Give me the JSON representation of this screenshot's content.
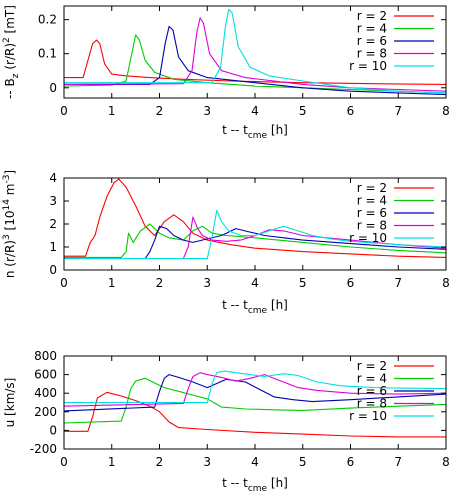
{
  "chart_data": [
    {
      "type": "line",
      "xlabel": "t -- t",
      "xlabel_sub": "cme",
      "xlabel_unit": " [h]",
      "ylabel": "-- B",
      "ylabel_sub": "z",
      "ylabel_rest": " (r/R)",
      "ylabel_sup": "2",
      "ylabel_unit": " [mT]",
      "xlim": [
        0,
        8
      ],
      "ylim": [
        -0.03,
        0.24
      ],
      "xticks": [
        0,
        1,
        2,
        3,
        4,
        5,
        6,
        7,
        8
      ],
      "yticks": [
        0,
        0.1,
        0.2
      ],
      "ytick_labels": [
        "0",
        "0.1",
        "0.2"
      ],
      "legend": "top-right",
      "series": [
        {
          "name": "r = 2",
          "color": "#ff0000",
          "x": [
            0,
            0.4,
            0.5,
            0.6,
            0.68,
            0.75,
            0.85,
            1.0,
            1.3,
            1.8,
            2.5,
            3.5,
            5,
            6.5,
            8
          ],
          "y": [
            0.03,
            0.03,
            0.08,
            0.13,
            0.14,
            0.13,
            0.07,
            0.04,
            0.035,
            0.03,
            0.025,
            0.02,
            0.015,
            0.012,
            0.01
          ]
        },
        {
          "name": "r = 4",
          "color": "#00cc00",
          "x": [
            0,
            1.0,
            1.3,
            1.42,
            1.5,
            1.58,
            1.7,
            1.9,
            2.3,
            3,
            4,
            5,
            6,
            7,
            8
          ],
          "y": [
            0.005,
            0.008,
            0.02,
            0.1,
            0.155,
            0.14,
            0.08,
            0.045,
            0.025,
            0.015,
            0.005,
            0,
            -0.005,
            -0.01,
            -0.015
          ]
        },
        {
          "name": "r = 6",
          "color": "#0000b3",
          "x": [
            0,
            1.8,
            2.0,
            2.12,
            2.2,
            2.28,
            2.4,
            2.6,
            3,
            4,
            5,
            6,
            7,
            8
          ],
          "y": [
            0.01,
            0.01,
            0.03,
            0.13,
            0.18,
            0.17,
            0.09,
            0.05,
            0.03,
            0.015,
            0.0,
            -0.01,
            -0.015,
            -0.02
          ]
        },
        {
          "name": "r = 8",
          "color": "#e000e0",
          "x": [
            0,
            2.5,
            2.68,
            2.78,
            2.85,
            2.92,
            3.05,
            3.3,
            3.8,
            5,
            6,
            7,
            8
          ],
          "y": [
            0.01,
            0.012,
            0.05,
            0.16,
            0.205,
            0.19,
            0.1,
            0.05,
            0.03,
            0.01,
            0.0,
            -0.005,
            -0.01
          ]
        },
        {
          "name": "r = 10",
          "color": "#00e0e0",
          "x": [
            0,
            3.1,
            3.28,
            3.38,
            3.45,
            3.52,
            3.65,
            3.9,
            4.3,
            5,
            6,
            7,
            8
          ],
          "y": [
            0.015,
            0.015,
            0.06,
            0.18,
            0.23,
            0.22,
            0.12,
            0.06,
            0.035,
            0.02,
            0.0,
            -0.01,
            -0.015
          ]
        }
      ]
    },
    {
      "type": "line",
      "xlabel": "t -- t",
      "xlabel_sub": "cme",
      "xlabel_unit": " [h]",
      "ylabel": "n (r/R)",
      "ylabel_sup": "3",
      "ylabel_rest": " [10",
      "ylabel_sup2": "14",
      "ylabel_unit": " m",
      "ylabel_sup3": "-3",
      "ylabel_end": "]",
      "xlim": [
        0,
        8
      ],
      "ylim": [
        0,
        4
      ],
      "xticks": [
        0,
        1,
        2,
        3,
        4,
        5,
        6,
        7,
        8
      ],
      "yticks": [
        0,
        1,
        2,
        3,
        4
      ],
      "ytick_labels": [
        "0",
        "1",
        "2",
        "3",
        "4"
      ],
      "legend": "top-right",
      "series": [
        {
          "name": "r = 2",
          "color": "#ff0000",
          "x": [
            0,
            0.45,
            0.55,
            0.65,
            0.75,
            0.9,
            1.05,
            1.15,
            1.3,
            1.5,
            1.7,
            1.9,
            2.1,
            2.3,
            2.5,
            2.7,
            3.0,
            3.5,
            4,
            5,
            6,
            7,
            8
          ],
          "y": [
            0.6,
            0.6,
            1.2,
            1.5,
            2.3,
            3.2,
            3.8,
            3.95,
            3.6,
            2.8,
            1.9,
            1.5,
            2.1,
            2.4,
            2.1,
            1.6,
            1.3,
            1.1,
            0.95,
            0.8,
            0.7,
            0.6,
            0.55
          ]
        },
        {
          "name": "r = 4",
          "color": "#00cc00",
          "x": [
            0,
            1.2,
            1.3,
            1.35,
            1.45,
            1.6,
            1.8,
            2.0,
            2.2,
            2.5,
            2.7,
            2.9,
            3.1,
            3.4,
            4,
            5,
            6,
            7,
            8
          ],
          "y": [
            0.55,
            0.55,
            0.8,
            1.6,
            1.2,
            1.7,
            2.0,
            1.6,
            1.4,
            1.3,
            1.7,
            1.9,
            1.6,
            1.5,
            1.4,
            1.2,
            1.0,
            0.85,
            0.75
          ]
        },
        {
          "name": "r = 6",
          "color": "#0000b3",
          "x": [
            0,
            1.7,
            1.8,
            1.9,
            2.0,
            2.15,
            2.3,
            2.5,
            2.7,
            3.0,
            3.3,
            3.6,
            3.9,
            4.2,
            4.6,
            5,
            6,
            7,
            8
          ],
          "y": [
            0.5,
            0.5,
            0.8,
            1.3,
            1.9,
            1.8,
            1.5,
            1.3,
            1.2,
            1.35,
            1.5,
            1.8,
            1.65,
            1.5,
            1.4,
            1.3,
            1.15,
            1.0,
            0.9
          ]
        },
        {
          "name": "r = 8",
          "color": "#e000e0",
          "x": [
            0,
            2.5,
            2.6,
            2.7,
            2.8,
            2.9,
            3.1,
            3.4,
            3.7,
            4.0,
            4.3,
            4.6,
            5.0,
            5.5,
            6,
            7,
            8
          ],
          "y": [
            0.5,
            0.5,
            1.0,
            2.3,
            1.8,
            1.5,
            1.3,
            1.25,
            1.3,
            1.5,
            1.75,
            1.7,
            1.5,
            1.4,
            1.3,
            1.1,
            0.95
          ]
        },
        {
          "name": "r = 10",
          "color": "#00e0e0",
          "x": [
            0,
            3.0,
            3.1,
            3.2,
            3.3,
            3.45,
            3.7,
            4.0,
            4.3,
            4.6,
            4.9,
            5.2,
            5.6,
            6,
            7,
            8
          ],
          "y": [
            0.5,
            0.5,
            1.4,
            2.6,
            2.1,
            1.7,
            1.5,
            1.5,
            1.7,
            1.9,
            1.7,
            1.5,
            1.35,
            1.25,
            1.1,
            1.0
          ]
        }
      ]
    },
    {
      "type": "line",
      "xlabel": "t -- t",
      "xlabel_sub": "cme",
      "xlabel_unit": " [h]",
      "ylabel": "u [km/s]",
      "xlim": [
        0,
        8
      ],
      "ylim": [
        -200,
        800
      ],
      "xticks": [
        0,
        1,
        2,
        3,
        4,
        5,
        6,
        7,
        8
      ],
      "yticks": [
        -200,
        0,
        200,
        400,
        600,
        800
      ],
      "ytick_labels": [
        "-200",
        "0",
        "200",
        "400",
        "600",
        "800"
      ],
      "legend": "top-right",
      "series": [
        {
          "name": "r = 2",
          "color": "#ff0000",
          "x": [
            0,
            0.5,
            0.6,
            0.7,
            0.9,
            1.2,
            1.5,
            1.8,
            2.0,
            2.2,
            2.4,
            3,
            4,
            5,
            6,
            7,
            8
          ],
          "y": [
            -10,
            -10,
            150,
            350,
            410,
            370,
            320,
            260,
            200,
            90,
            30,
            10,
            -20,
            -40,
            -60,
            -70,
            -70
          ]
        },
        {
          "name": "r = 4",
          "color": "#00cc00",
          "x": [
            0,
            1.2,
            1.3,
            1.4,
            1.5,
            1.7,
            1.9,
            2.1,
            2.4,
            2.7,
            3.0,
            3.3,
            3.8,
            4.5,
            5,
            6,
            7,
            8
          ],
          "y": [
            80,
            100,
            250,
            450,
            530,
            560,
            510,
            460,
            420,
            380,
            340,
            250,
            230,
            220,
            215,
            240,
            260,
            280
          ]
        },
        {
          "name": "r = 6",
          "color": "#0000b3",
          "x": [
            0,
            1.9,
            2.0,
            2.1,
            2.2,
            2.4,
            2.7,
            3.0,
            3.4,
            3.8,
            4.1,
            4.4,
            4.8,
            5.2,
            6,
            7,
            8
          ],
          "y": [
            210,
            250,
            420,
            560,
            600,
            570,
            520,
            460,
            550,
            520,
            440,
            360,
            330,
            310,
            330,
            360,
            390
          ]
        },
        {
          "name": "r = 8",
          "color": "#e000e0",
          "x": [
            0,
            2.5,
            2.6,
            2.7,
            2.85,
            3.0,
            3.3,
            3.6,
            3.9,
            4.2,
            4.5,
            4.9,
            5.3,
            6,
            7,
            8
          ],
          "y": [
            260,
            290,
            450,
            580,
            620,
            600,
            570,
            530,
            560,
            600,
            540,
            460,
            430,
            400,
            390,
            400
          ]
        },
        {
          "name": "r = 10",
          "color": "#00e0e0",
          "x": [
            0,
            3.0,
            3.1,
            3.2,
            3.35,
            3.6,
            3.9,
            4.2,
            4.6,
            4.9,
            5.3,
            5.8,
            6.5,
            7,
            8
          ],
          "y": [
            300,
            300,
            500,
            620,
            640,
            620,
            600,
            580,
            610,
            590,
            520,
            480,
            460,
            455,
            450
          ]
        }
      ]
    }
  ]
}
